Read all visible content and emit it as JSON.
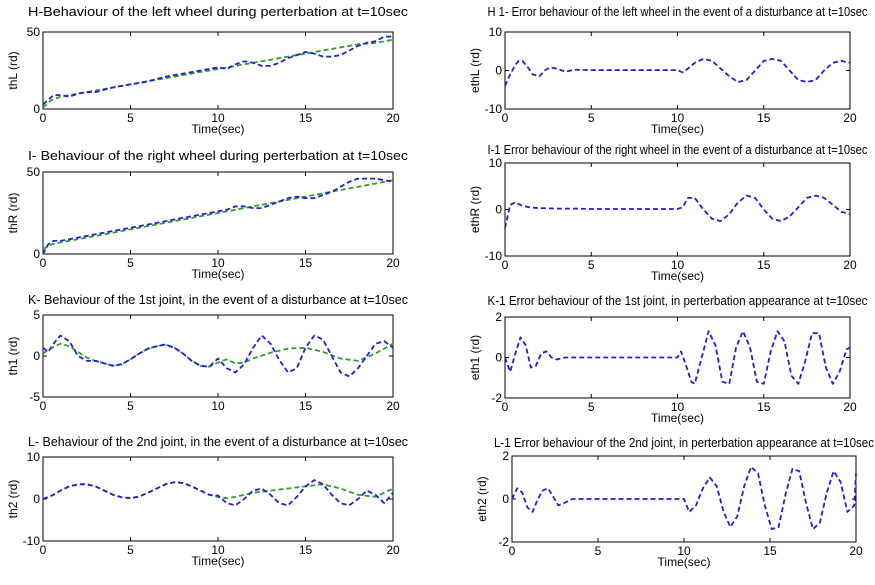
{
  "chart_data": [
    {
      "type": "line",
      "title": "H-Behaviour of the left wheel during perterbation at t=10sec",
      "xlabel": "Time(sec)",
      "ylabel": "thL (rd)",
      "xlim": [
        0,
        20
      ],
      "ylim": [
        0,
        50
      ],
      "xticks": [
        "0",
        "5",
        "10",
        "15",
        "20"
      ],
      "yticks": [
        "0",
        "50"
      ],
      "series": [
        {
          "style": "blue-dashed",
          "x": [
            0,
            0.3,
            0.6,
            1,
            1.5,
            2,
            2.5,
            3,
            4,
            5,
            6,
            7,
            8,
            9,
            10,
            10.5,
            11,
            11.5,
            12,
            12.5,
            13,
            13.5,
            14,
            14.5,
            15,
            15.5,
            16,
            16.5,
            17,
            17.5,
            18,
            18.5,
            19,
            19.5,
            20
          ],
          "y": [
            3,
            6,
            9,
            9,
            8,
            10,
            11,
            11,
            14,
            16,
            18,
            21,
            23,
            25,
            27,
            26,
            29,
            31,
            30,
            28,
            28,
            30,
            33,
            35,
            37,
            36,
            34,
            34,
            35,
            38,
            41,
            43,
            44,
            47,
            47
          ]
        },
        {
          "style": "green-dashed",
          "x": [
            0,
            0.5,
            1,
            1.5,
            2,
            3,
            5,
            7,
            9,
            10,
            11,
            12,
            13,
            14,
            15,
            16,
            17,
            18,
            19,
            20
          ],
          "y": [
            1,
            6,
            8,
            9,
            10,
            12,
            16,
            20,
            24,
            26,
            28,
            30,
            32,
            34,
            36,
            38,
            40,
            42,
            43,
            45
          ]
        }
      ]
    },
    {
      "type": "line",
      "title": "H 1- Error behaviour of the left wheel in the event of a disturbance at t=10sec",
      "xlabel": "Time(sec)",
      "ylabel": "ethL (rd)",
      "xlim": [
        0,
        20
      ],
      "ylim": [
        -10,
        10
      ],
      "xticks": [
        "0",
        "5",
        "10",
        "15",
        "20"
      ],
      "yticks": [
        "-10",
        "0",
        "10"
      ],
      "series": [
        {
          "style": "blue-dashed",
          "x": [
            0,
            0.3,
            0.6,
            0.8,
            1,
            1.3,
            1.6,
            2,
            2.3,
            2.6,
            3,
            3.5,
            4,
            5,
            6,
            7,
            8,
            9,
            10,
            10.3,
            10.6,
            11,
            11.5,
            12,
            12.5,
            13,
            13.5,
            14,
            14.5,
            15,
            15.5,
            16,
            16.5,
            17,
            17.5,
            18,
            18.5,
            19,
            19.5,
            20
          ],
          "y": [
            -4,
            -1,
            1.5,
            2.5,
            2.5,
            1,
            -1,
            -1.5,
            0,
            0.8,
            0.5,
            -0.3,
            0.2,
            0.1,
            0.1,
            0.1,
            0.1,
            0.1,
            0.1,
            -0.5,
            0.5,
            2,
            3,
            2.5,
            0.5,
            -1.5,
            -3,
            -2.5,
            0,
            2.5,
            3,
            2.5,
            0,
            -2.5,
            -3,
            -2.5,
            0,
            2,
            2.5,
            2
          ]
        }
      ]
    },
    {
      "type": "line",
      "title": "I- Behaviour of the right wheel during perterbation at t=10sec",
      "xlabel": "Time(sec)",
      "ylabel": "thR (rd)",
      "xlim": [
        0,
        20
      ],
      "ylim": [
        0,
        50
      ],
      "xticks": [
        "0",
        "5",
        "10",
        "15",
        "20"
      ],
      "yticks": [
        "0",
        "50"
      ],
      "series": [
        {
          "style": "blue-dashed",
          "x": [
            0,
            0.3,
            0.6,
            1,
            2,
            3,
            4,
            5,
            6,
            7,
            8,
            9,
            10,
            10.5,
            11,
            11.5,
            12,
            12.5,
            13,
            13.5,
            14,
            14.5,
            15,
            15.5,
            16,
            16.5,
            17,
            17.5,
            18,
            18.5,
            19,
            19.5,
            20
          ],
          "y": [
            0,
            6,
            8,
            8,
            10,
            12,
            14,
            16,
            18,
            20,
            22,
            24,
            26,
            27,
            29,
            29,
            28,
            28,
            30,
            32,
            34,
            35,
            34,
            34,
            36,
            38,
            41,
            44,
            46,
            46,
            46,
            45,
            44
          ]
        },
        {
          "style": "green-dashed",
          "x": [
            0,
            0.5,
            1,
            2,
            3,
            5,
            7,
            9,
            10,
            11,
            12,
            13,
            14,
            15,
            16,
            17,
            18,
            19,
            20
          ],
          "y": [
            3,
            6,
            7,
            9,
            11,
            15,
            19,
            23,
            25,
            27,
            29,
            31,
            33,
            35,
            37,
            39,
            41,
            43,
            45
          ]
        }
      ]
    },
    {
      "type": "line",
      "title": "I-1  Error behaviour of the right wheel in the event of a disturbance at t=10sec",
      "xlabel": "Time(sec)",
      "ylabel": "ethR (rd)",
      "xlim": [
        0,
        20
      ],
      "ylim": [
        -10,
        10
      ],
      "xticks": [
        "0",
        "5",
        "10",
        "15",
        "20"
      ],
      "yticks": [
        "-10",
        "0",
        "10"
      ],
      "series": [
        {
          "style": "blue-dashed",
          "x": [
            0,
            0.3,
            0.6,
            1,
            1.5,
            2,
            3,
            4,
            5,
            6,
            7,
            8,
            9,
            10,
            10.3,
            10.6,
            11,
            11.5,
            12,
            12.5,
            13,
            13.5,
            14,
            14.5,
            15,
            15.5,
            16,
            16.5,
            17,
            17.5,
            18,
            18.5,
            19,
            19.5,
            20
          ],
          "y": [
            -4,
            1,
            1.5,
            0.8,
            0.4,
            0.3,
            0.2,
            0.2,
            0.1,
            0.1,
            0.1,
            0.1,
            0.1,
            0.1,
            0.5,
            2.5,
            2.5,
            0,
            -2,
            -2.5,
            -1,
            1.5,
            3,
            2.5,
            0,
            -2,
            -2.5,
            -1.5,
            0.5,
            2.5,
            3,
            2.5,
            1,
            -0.5,
            -1
          ]
        }
      ]
    },
    {
      "type": "line",
      "title": "K- Behaviour of the 1st joint, in the event of a disturbance at t=10sec",
      "xlabel": "",
      "ylabel": "th1 (rd)",
      "xlim": [
        0,
        20
      ],
      "ylim": [
        -5,
        5
      ],
      "xticks": [
        "0",
        "5",
        "10",
        "15",
        "20"
      ],
      "yticks": [
        "-5",
        "0",
        "5"
      ],
      "series": [
        {
          "style": "blue-dashed",
          "x": [
            0,
            0.3,
            0.6,
            1,
            1.5,
            2,
            2.5,
            3,
            3.5,
            4,
            4.5,
            5,
            5.5,
            6,
            6.5,
            7,
            7.5,
            8,
            8.5,
            9,
            9.5,
            10,
            10.5,
            11,
            11.5,
            12,
            12.5,
            13,
            13.5,
            14,
            14.5,
            15,
            15.5,
            16,
            16.5,
            17,
            17.5,
            18,
            18.5,
            19,
            19.5,
            20
          ],
          "y": [
            1,
            0.5,
            1.5,
            2.5,
            1.8,
            0,
            -0.6,
            -0.6,
            -0.9,
            -1.2,
            -1,
            -0.4,
            0.3,
            0.9,
            1.2,
            1.4,
            1,
            0.3,
            -0.6,
            -1.2,
            -1.3,
            -0.3,
            -1.5,
            -2,
            -1,
            1,
            2.5,
            1.5,
            -0.5,
            -2,
            -1.5,
            1,
            2.5,
            2,
            0,
            -2,
            -2.5,
            -1.5,
            0,
            1.5,
            1.8,
            1
          ]
        },
        {
          "style": "green-dashed",
          "x": [
            0,
            0.5,
            1,
            1.5,
            2,
            2.5,
            3,
            3.5,
            4,
            4.5,
            5,
            5.5,
            6,
            6.5,
            7,
            7.5,
            8,
            8.5,
            9,
            9.5,
            10,
            10.5,
            11,
            11.5,
            12,
            13,
            14,
            15,
            16,
            17,
            18,
            19,
            20
          ],
          "y": [
            0.3,
            1,
            1.5,
            1.2,
            0.5,
            -0.2,
            -0.6,
            -0.9,
            -1.2,
            -1,
            -0.4,
            0.3,
            0.9,
            1.2,
            1.4,
            1,
            0.3,
            -0.6,
            -1.2,
            -1.3,
            -0.8,
            -0.4,
            -0.9,
            -0.8,
            -0.3,
            0.4,
            0.9,
            1,
            0.5,
            -0.3,
            -0.6,
            0.3,
            1.5
          ]
        }
      ]
    },
    {
      "type": "line",
      "title": "K-1 Error behaviour of the 1st joint, in perterbation appearance at t=10sec",
      "xlabel": "Time(sec)",
      "ylabel": "eth1 (rd)",
      "xlim": [
        0,
        20
      ],
      "ylim": [
        -2,
        2
      ],
      "xticks": [
        "0",
        "5",
        "10",
        "15",
        "20"
      ],
      "yticks": [
        "-2",
        "0",
        "2"
      ],
      "series": [
        {
          "style": "blue-dashed",
          "x": [
            0,
            0.3,
            0.6,
            0.9,
            1.2,
            1.5,
            1.8,
            2.1,
            2.4,
            2.7,
            3,
            3.5,
            4,
            5,
            6,
            7,
            8,
            9,
            10,
            10.2,
            10.5,
            10.8,
            11,
            11.4,
            11.8,
            12.2,
            12.6,
            13,
            13.4,
            13.8,
            14.2,
            14.6,
            15,
            15.4,
            15.8,
            16.2,
            16.6,
            17,
            17.4,
            17.8,
            18.2,
            18.6,
            19,
            19.4,
            19.8,
            20
          ],
          "y": [
            0,
            -0.7,
            0.2,
            1,
            0.6,
            -0.5,
            -0.4,
            0.2,
            0.3,
            0,
            -0.1,
            0,
            0,
            0,
            0,
            0,
            0,
            0,
            0,
            0.3,
            -0.4,
            -1.2,
            -1.3,
            0,
            1.3,
            0.6,
            -1.2,
            -1.3,
            0.5,
            1.3,
            0.5,
            -1.2,
            -1.3,
            0.3,
            1.3,
            0.8,
            -0.9,
            -1.3,
            -0.2,
            1.2,
            1.2,
            -0.5,
            -1.3,
            -0.7,
            0.4,
            0.5
          ]
        }
      ]
    },
    {
      "type": "line",
      "title": "L- Behaviour of the 2nd joint, in the event of a disturbance at t=10sec",
      "xlabel": "Time(sec)",
      "ylabel": "th2 (rd)",
      "xlim": [
        0,
        20
      ],
      "ylim": [
        -10,
        10
      ],
      "xticks": [
        "0",
        "5",
        "10",
        "15",
        "20"
      ],
      "yticks": [
        "-10",
        "0",
        "10"
      ],
      "series": [
        {
          "style": "blue-dashed",
          "x": [
            0,
            0.3,
            0.6,
            1,
            1.5,
            2,
            2.5,
            3,
            3.5,
            4,
            4.5,
            5,
            5.5,
            6,
            6.5,
            7,
            7.5,
            8,
            8.5,
            9,
            9.5,
            10,
            10.5,
            11,
            11.5,
            12,
            12.5,
            13,
            13.5,
            14,
            14.5,
            15,
            15.5,
            16,
            16.5,
            17,
            17.5,
            18,
            18.5,
            19,
            19.5,
            20
          ],
          "y": [
            0,
            0.5,
            1,
            2,
            3,
            3.5,
            3.5,
            3,
            2,
            1,
            0.4,
            0.2,
            0.6,
            1.5,
            2.5,
            3.5,
            4,
            3.8,
            3,
            2,
            1,
            0.8,
            -1,
            -1.5,
            0,
            2,
            2.5,
            1,
            -1,
            -1.5,
            0.5,
            3,
            4.5,
            3.5,
            1,
            -1,
            -1.5,
            0,
            2,
            1,
            -1,
            1.5
          ]
        },
        {
          "style": "green-dashed",
          "x": [
            0,
            0.5,
            1,
            1.5,
            2,
            2.5,
            3,
            3.5,
            4,
            4.5,
            5,
            5.5,
            6,
            6.5,
            7,
            7.5,
            8,
            8.5,
            9,
            9.5,
            10,
            10.5,
            11,
            11.5,
            12,
            13,
            14,
            15,
            16,
            17,
            18,
            19,
            20
          ],
          "y": [
            0,
            0.8,
            2,
            3,
            3.5,
            3.5,
            3,
            2,
            1,
            0.4,
            0.2,
            0.6,
            1.5,
            2.5,
            3.5,
            4,
            3.8,
            3,
            2,
            1,
            0.5,
            0.2,
            0.5,
            1,
            1.5,
            2,
            2.5,
            3,
            3.5,
            2.5,
            1,
            0.5,
            2.5
          ]
        }
      ]
    },
    {
      "type": "line",
      "title": "L-1 Error behaviour of the 2nd joint, in perterbation appearance at t=10sec",
      "xlabel": "Time(sec)",
      "ylabel": "eth2 (rd)",
      "xlim": [
        0,
        20
      ],
      "ylim": [
        -2,
        2
      ],
      "xticks": [
        "0",
        "5",
        "10",
        "15",
        "20"
      ],
      "yticks": [
        "-2",
        "0",
        "2"
      ],
      "series": [
        {
          "style": "blue-dashed",
          "x": [
            0,
            0.3,
            0.6,
            0.9,
            1.2,
            1.5,
            1.8,
            2.1,
            2.4,
            2.7,
            3,
            3.5,
            4,
            5,
            6,
            7,
            8,
            9,
            10,
            10.3,
            10.7,
            11.1,
            11.5,
            11.9,
            12.3,
            12.7,
            13.1,
            13.5,
            13.9,
            14.3,
            14.7,
            15.1,
            15.5,
            15.9,
            16.3,
            16.7,
            17.1,
            17.5,
            17.9,
            18.3,
            18.7,
            19.1,
            19.5,
            19.9,
            20
          ],
          "y": [
            0,
            0.5,
            0.3,
            -0.4,
            -0.6,
            0,
            0.4,
            0.5,
            0.1,
            -0.3,
            -0.2,
            0,
            0,
            0,
            0,
            0,
            0,
            0,
            0,
            -0.6,
            -0.3,
            0.5,
            1,
            0.6,
            -0.6,
            -1.3,
            -0.8,
            0.6,
            1.5,
            1.2,
            -0.3,
            -1.4,
            -1.3,
            0.2,
            1.4,
            1.3,
            -0.2,
            -1.4,
            -1.1,
            0.3,
            1.3,
            0.8,
            -0.6,
            -0.3,
            1.2
          ]
        }
      ]
    }
  ],
  "colors": {
    "blue_dashed": "#1f1fd8",
    "green_dashed": "#2e9c2e",
    "axes": "#000000",
    "background": "#ffffff"
  }
}
